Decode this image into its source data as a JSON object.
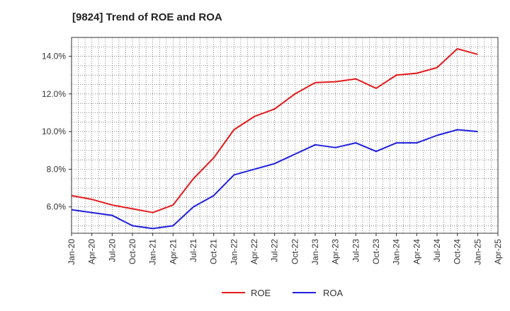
{
  "chart_data": {
    "type": "line",
    "title": "[9824]  Trend of ROE and ROA",
    "x": [
      "Jan-20",
      "Apr-20",
      "Jul-20",
      "Oct-20",
      "Jan-21",
      "Apr-21",
      "Jul-21",
      "Oct-21",
      "Jan-22",
      "Apr-22",
      "Jul-22",
      "Oct-22",
      "Jan-23",
      "Apr-23",
      "Jul-23",
      "Oct-23",
      "Jan-24",
      "Apr-24",
      "Jul-24",
      "Oct-24",
      "Jan-25"
    ],
    "x_tick_labels": [
      "Jan-20",
      "Apr-20",
      "Jul-20",
      "Oct-20",
      "Jan-21",
      "Apr-21",
      "Jul-21",
      "Oct-21",
      "Jan-22",
      "Apr-22",
      "Jul-22",
      "Oct-22",
      "Jan-23",
      "Apr-23",
      "Jul-23",
      "Oct-23",
      "Jan-24",
      "Apr-24",
      "Jul-24",
      "Oct-24",
      "Jan-25",
      "Apr-25"
    ],
    "y_ticks": [
      6.0,
      8.0,
      10.0,
      12.0,
      14.0
    ],
    "y_tick_labels": [
      "6.0%",
      "8.0%",
      "10.0%",
      "12.0%",
      "14.0%"
    ],
    "ylim": [
      4.6,
      15.0
    ],
    "grid": true,
    "legend_position": "bottom-center",
    "series": [
      {
        "name": "ROE",
        "color": "#e41a1c",
        "values": [
          6.6,
          6.4,
          6.1,
          5.9,
          5.7,
          6.1,
          7.5,
          8.6,
          10.1,
          10.8,
          11.2,
          12.0,
          12.6,
          12.65,
          12.8,
          12.3,
          13.0,
          13.1,
          13.4,
          14.4,
          14.1
        ]
      },
      {
        "name": "ROA",
        "color": "#1f1fdc",
        "values": [
          5.85,
          5.7,
          5.55,
          5.0,
          4.85,
          5.0,
          6.0,
          6.6,
          7.7,
          8.0,
          8.3,
          8.8,
          9.3,
          9.15,
          9.4,
          8.95,
          9.4,
          9.4,
          9.8,
          10.1,
          10.0
        ]
      }
    ]
  }
}
